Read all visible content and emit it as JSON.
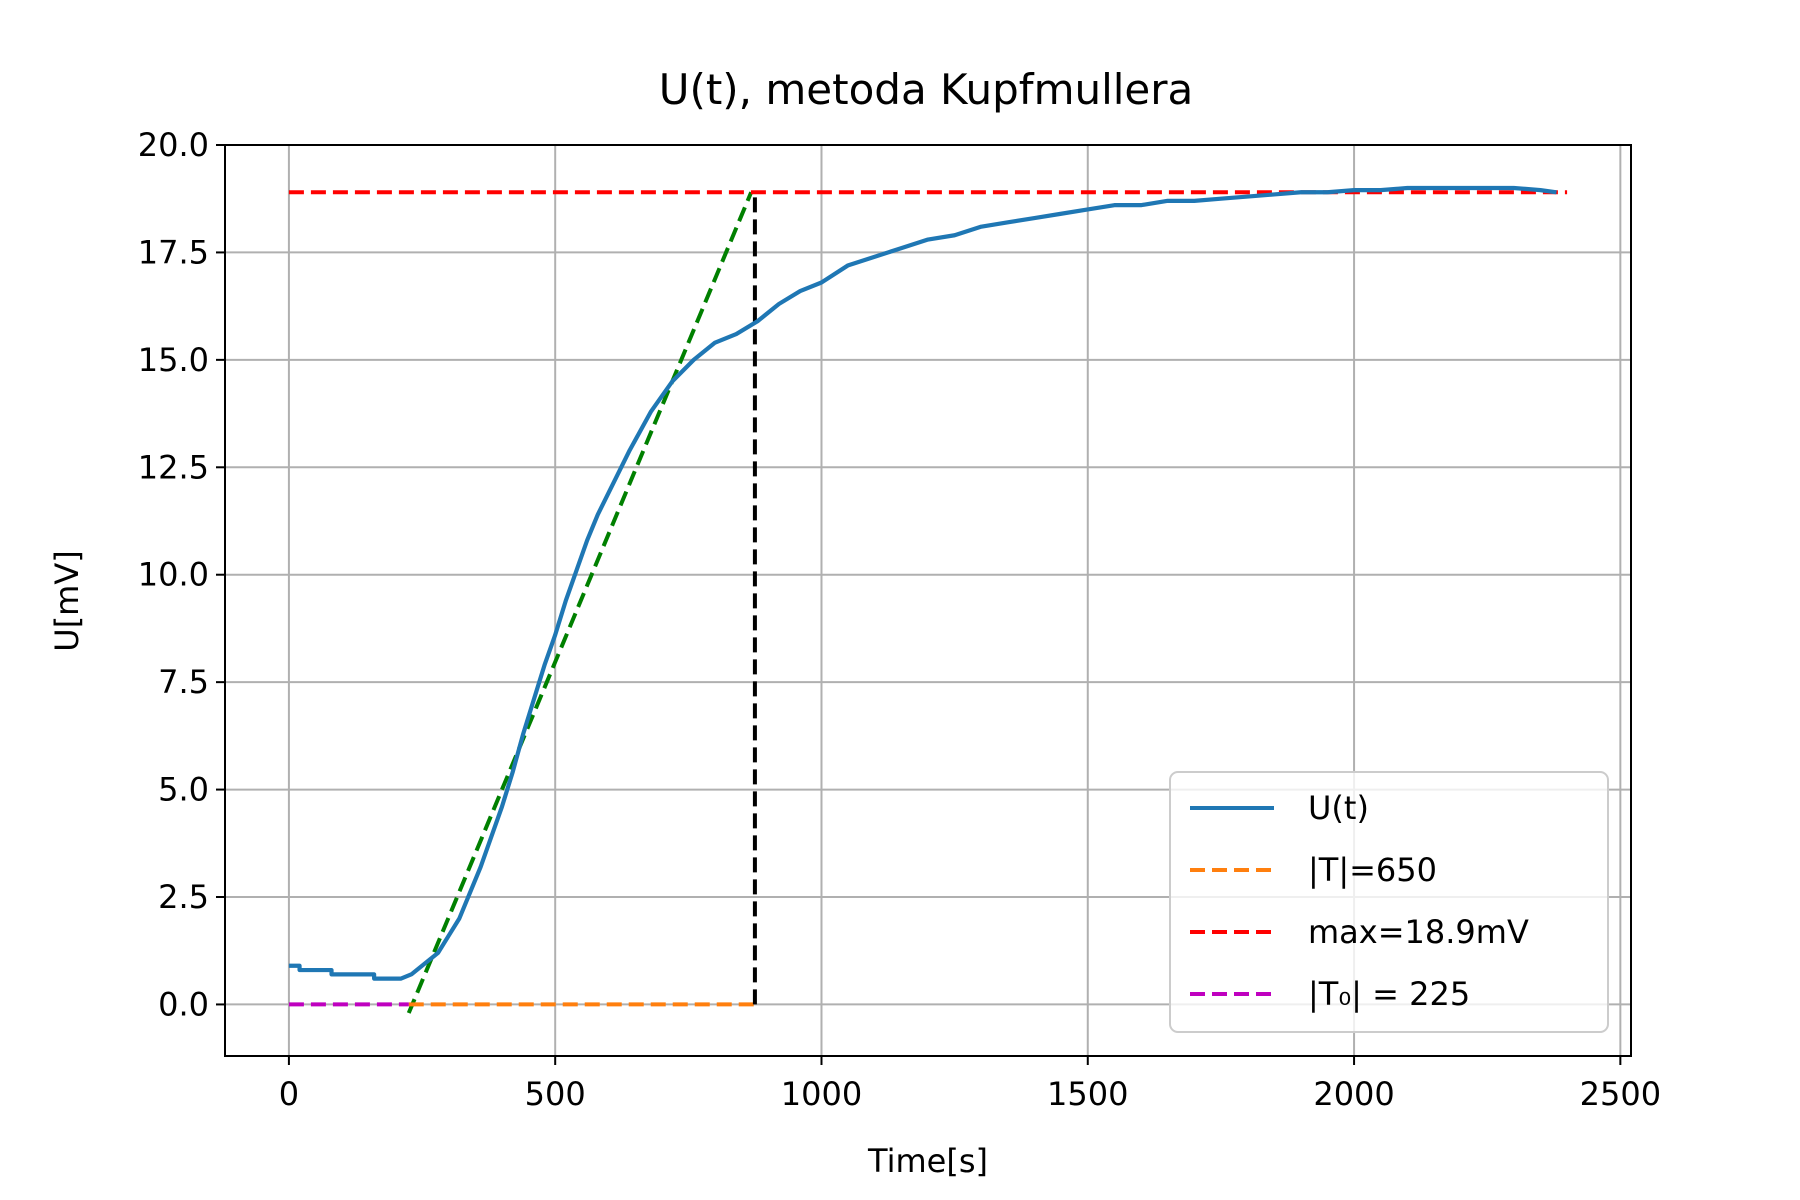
{
  "chart_data": {
    "type": "line",
    "title": "U(t), metoda Kupfmullera",
    "xlabel": "Time[s]",
    "ylabel": "U[mV]",
    "xlim": [
      -120,
      2520
    ],
    "ylim": [
      -1.2,
      20.0
    ],
    "xticks": [
      0,
      500,
      1000,
      1500,
      2000,
      2500
    ],
    "yticks": [
      0.0,
      2.5,
      5.0,
      7.5,
      10.0,
      12.5,
      15.0,
      17.5,
      20.0
    ],
    "xtick_labels": [
      "0",
      "500",
      "1000",
      "1500",
      "2000",
      "2500"
    ],
    "ytick_labels": [
      "0.0",
      "2.5",
      "5.0",
      "7.5",
      "10.0",
      "12.5",
      "15.0",
      "17.5",
      "20.0"
    ],
    "grid": true,
    "legend_position": "lower-right",
    "series": [
      {
        "key": "measured",
        "name": "U(t)",
        "style": "solid",
        "color": "#1f77b4",
        "x": [
          0,
          20,
          20,
          80,
          80,
          160,
          160,
          210,
          230,
          250,
          280,
          300,
          320,
          340,
          360,
          380,
          400,
          420,
          440,
          460,
          480,
          500,
          520,
          540,
          560,
          580,
          600,
          640,
          680,
          720,
          760,
          800,
          840,
          880,
          920,
          960,
          1000,
          1050,
          1100,
          1150,
          1200,
          1250,
          1300,
          1350,
          1400,
          1450,
          1500,
          1550,
          1600,
          1650,
          1700,
          1750,
          1800,
          1850,
          1900,
          1950,
          2000,
          2050,
          2100,
          2150,
          2200,
          2250,
          2300,
          2350,
          2380
        ],
        "y": [
          0.9,
          0.9,
          0.8,
          0.8,
          0.7,
          0.7,
          0.6,
          0.6,
          0.7,
          0.9,
          1.2,
          1.6,
          2.0,
          2.6,
          3.2,
          3.9,
          4.6,
          5.4,
          6.3,
          7.1,
          7.9,
          8.6,
          9.4,
          10.1,
          10.8,
          11.4,
          11.9,
          12.9,
          13.8,
          14.5,
          15.0,
          15.4,
          15.6,
          15.9,
          16.3,
          16.6,
          16.8,
          17.2,
          17.4,
          17.6,
          17.8,
          17.9,
          18.1,
          18.2,
          18.3,
          18.4,
          18.5,
          18.6,
          18.6,
          18.7,
          18.7,
          18.75,
          18.8,
          18.85,
          18.9,
          18.9,
          18.95,
          18.95,
          19.0,
          19.0,
          19.0,
          19.0,
          19.0,
          18.95,
          18.9
        ]
      },
      {
        "key": "tangent",
        "name": "",
        "style": "dashed",
        "color": "#008000",
        "x": [
          225,
          868
        ],
        "y": [
          -0.2,
          18.9
        ]
      },
      {
        "key": "vertical",
        "name": "",
        "style": "dashed",
        "color": "#000000",
        "x": [
          875,
          875
        ],
        "y": [
          0.0,
          18.9
        ]
      },
      {
        "key": "T",
        "name": "|T|=650",
        "style": "dashed",
        "color": "#ff7f0e",
        "x": [
          225,
          875
        ],
        "y": [
          0.0,
          0.0
        ]
      },
      {
        "key": "max",
        "name": "max=18.9mV",
        "style": "dashed",
        "color": "#ff0000",
        "x": [
          0,
          2400
        ],
        "y": [
          18.9,
          18.9
        ]
      },
      {
        "key": "T0",
        "name": "|T₀| = 225",
        "style": "dashed",
        "color": "#bf00bf",
        "x": [
          0,
          225
        ],
        "y": [
          0.0,
          0.0
        ]
      }
    ],
    "legend_order": [
      "measured",
      "T",
      "max",
      "T0"
    ]
  }
}
